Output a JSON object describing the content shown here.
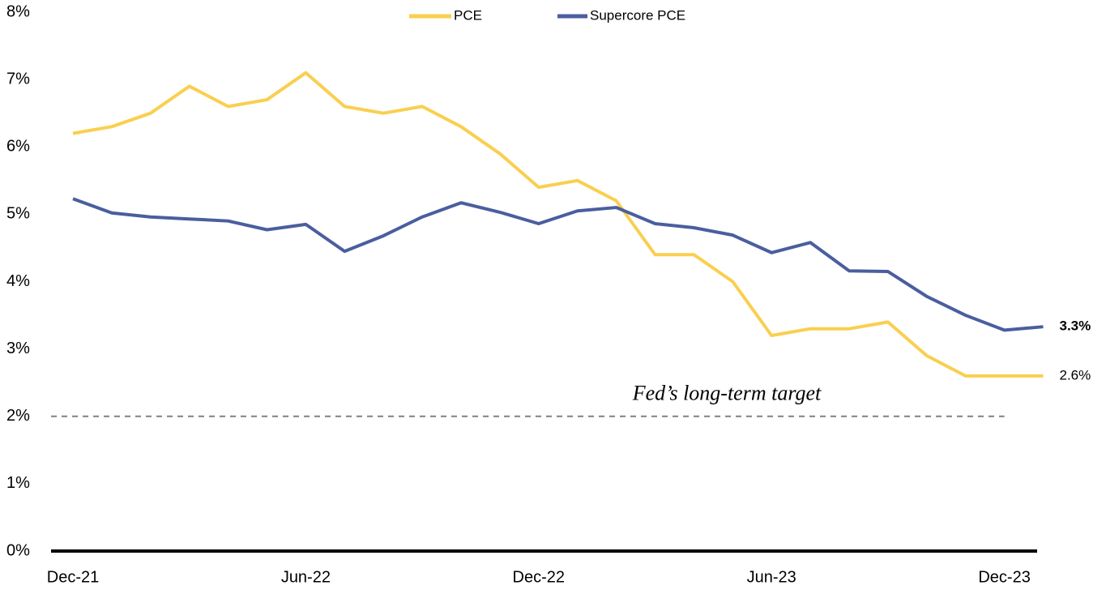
{
  "chart_data": {
    "type": "line",
    "categories": [
      "Dec-21",
      null,
      null,
      null,
      null,
      null,
      "Jun-22",
      null,
      null,
      null,
      null,
      null,
      "Dec-22",
      null,
      null,
      null,
      null,
      null,
      "Jun-23",
      null,
      null,
      null,
      null,
      null,
      "Dec-23",
      null
    ],
    "series": [
      {
        "name": "PCE",
        "color": "#f9cf4f",
        "values": [
          6.2,
          6.3,
          6.5,
          6.9,
          6.6,
          6.7,
          7.1,
          6.6,
          6.5,
          6.6,
          6.3,
          5.9,
          5.4,
          5.5,
          5.2,
          4.4,
          4.4,
          4.0,
          3.2,
          3.3,
          3.3,
          3.4,
          2.9,
          2.6,
          2.6,
          2.6
        ],
        "value_labels": [
          null,
          null,
          null,
          null,
          null,
          null,
          null,
          null,
          null,
          null,
          null,
          null,
          null,
          null,
          null,
          null,
          null,
          null,
          null,
          null,
          null,
          null,
          null,
          null,
          null,
          "2.6%"
        ]
      },
      {
        "name": "Supercore PCE",
        "color": "#4a5e9f",
        "values": [
          5.23,
          5.02,
          4.96,
          4.93,
          4.9,
          4.77,
          4.85,
          4.45,
          4.68,
          4.96,
          5.17,
          5.03,
          4.86,
          5.05,
          5.1,
          4.86,
          4.8,
          4.69,
          4.43,
          4.58,
          4.16,
          4.15,
          3.78,
          3.5,
          3.28,
          3.33
        ],
        "value_labels": [
          null,
          null,
          null,
          null,
          null,
          null,
          null,
          null,
          null,
          null,
          null,
          null,
          null,
          null,
          null,
          null,
          null,
          null,
          null,
          null,
          null,
          null,
          null,
          null,
          null,
          "3.3%"
        ]
      }
    ],
    "ylim": [
      0,
      8
    ],
    "yticks": [
      {
        "value": 0,
        "label": "0%"
      },
      {
        "value": 1,
        "label": "1%"
      },
      {
        "value": 2,
        "label": "2%"
      },
      {
        "value": 3,
        "label": "3%"
      },
      {
        "value": 4,
        "label": "4%"
      },
      {
        "value": 5,
        "label": "5%"
      },
      {
        "value": 6,
        "label": "6%"
      },
      {
        "value": 7,
        "label": "7%"
      },
      {
        "value": 8,
        "label": "8%"
      }
    ],
    "reference_line": {
      "value": 2,
      "label": "Fed’s long-term target"
    },
    "legend": "top"
  }
}
